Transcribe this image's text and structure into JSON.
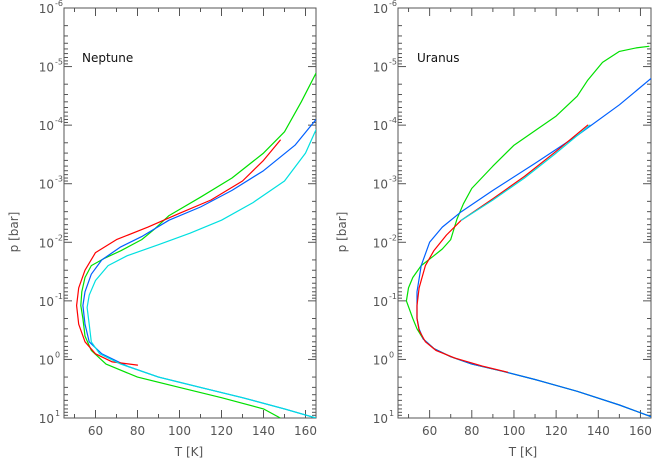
{
  "chart_data": [
    {
      "type": "line",
      "title": "Neptune",
      "xlabel": "T [K]",
      "ylabel": "p [bar]",
      "xlim": [
        45,
        165
      ],
      "ylim": [
        10,
        1e-06
      ],
      "y_scale": "log",
      "x_ticks": [
        60,
        80,
        100,
        120,
        140,
        160
      ],
      "y_tick_labels": [
        {
          "base": "10",
          "exp": "-6"
        },
        {
          "base": "10",
          "exp": "-5"
        },
        {
          "base": "10",
          "exp": "-4"
        },
        {
          "base": "10",
          "exp": "-3"
        },
        {
          "base": "10",
          "exp": "-2"
        },
        {
          "base": "10",
          "exp": "-1"
        },
        {
          "base": "10",
          "exp": "0"
        },
        {
          "base": "10",
          "exp": "1"
        }
      ],
      "series": [
        {
          "color": "#00e000",
          "points": [
            [
              148,
              10
            ],
            [
              140,
              7
            ],
            [
              120,
              4.5
            ],
            [
              100,
              3
            ],
            [
              80,
              2
            ],
            [
              65,
              1.2
            ],
            [
              58,
              0.7
            ],
            [
              55,
              0.4
            ],
            [
              54,
              0.2
            ],
            [
              53,
              0.12
            ],
            [
              53.5,
              0.07
            ],
            [
              55,
              0.04
            ],
            [
              58,
              0.025
            ],
            [
              64,
              0.019
            ],
            [
              72,
              0.014
            ],
            [
              82,
              0.009
            ],
            [
              88,
              0.006
            ],
            [
              95,
              0.0035
            ],
            [
              110,
              0.0017
            ],
            [
              125,
              0.0008
            ],
            [
              140,
              0.0003
            ],
            [
              150,
              0.00013
            ],
            [
              158,
              4e-05
            ],
            [
              165,
              1.3e-05
            ]
          ]
        },
        {
          "color": "#0060ff",
          "points": [
            [
              165,
              10
            ],
            [
              150,
              7
            ],
            [
              130,
              4.5
            ],
            [
              110,
              3
            ],
            [
              90,
              2
            ],
            [
              75,
              1.3
            ],
            [
              63,
              0.8
            ],
            [
              57,
              0.5
            ],
            [
              55,
              0.25
            ],
            [
              54,
              0.12
            ],
            [
              55,
              0.07
            ],
            [
              58,
              0.035
            ],
            [
              63,
              0.02
            ],
            [
              72,
              0.012
            ],
            [
              82,
              0.008
            ],
            [
              95,
              0.0042
            ],
            [
              110,
              0.0025
            ],
            [
              125,
              0.0013
            ],
            [
              140,
              0.0006
            ],
            [
              155,
              0.00022
            ],
            [
              165,
              8e-05
            ]
          ]
        },
        {
          "color": "#ff0000",
          "points": [
            [
              80,
              1.25
            ],
            [
              68,
              1.1
            ],
            [
              60,
              0.8
            ],
            [
              55,
              0.5
            ],
            [
              52,
              0.25
            ],
            [
              51,
              0.12
            ],
            [
              52,
              0.06
            ],
            [
              55,
              0.03
            ],
            [
              60,
              0.015
            ],
            [
              70,
              0.009
            ],
            [
              85,
              0.0055
            ],
            [
              100,
              0.0032
            ],
            [
              115,
              0.0019
            ],
            [
              130,
              0.0009
            ],
            [
              140,
              0.0004
            ],
            [
              148,
              0.00018
            ]
          ]
        },
        {
          "color": "#00e0e0",
          "points": [
            [
              165,
              10
            ],
            [
              150,
              7
            ],
            [
              130,
              4.5
            ],
            [
              110,
              3
            ],
            [
              90,
              2
            ],
            [
              72,
              1.2
            ],
            [
              62,
              0.8
            ],
            [
              58,
              0.5
            ],
            [
              57,
              0.25
            ],
            [
              56,
              0.13
            ],
            [
              57,
              0.08
            ],
            [
              60,
              0.045
            ],
            [
              66,
              0.025
            ],
            [
              75,
              0.017
            ],
            [
              90,
              0.011
            ],
            [
              105,
              0.007
            ],
            [
              120,
              0.0042
            ],
            [
              135,
              0.0021
            ],
            [
              150,
              0.0009
            ],
            [
              160,
              0.0003
            ],
            [
              165,
              0.00012
            ]
          ]
        }
      ]
    },
    {
      "type": "line",
      "title": "Uranus",
      "xlabel": "T [K]",
      "ylabel": "p [bar]",
      "xlim": [
        45,
        165
      ],
      "ylim": [
        10,
        1e-06
      ],
      "y_scale": "log",
      "x_ticks": [
        60,
        80,
        100,
        120,
        140,
        160
      ],
      "y_tick_labels": [
        {
          "base": "10",
          "exp": "-6"
        },
        {
          "base": "10",
          "exp": "-5"
        },
        {
          "base": "10",
          "exp": "-4"
        },
        {
          "base": "10",
          "exp": "-3"
        },
        {
          "base": "10",
          "exp": "-2"
        },
        {
          "base": "10",
          "exp": "-1"
        },
        {
          "base": "10",
          "exp": "0"
        },
        {
          "base": "10",
          "exp": "1"
        }
      ],
      "series": [
        {
          "color": "#00e000",
          "points": [
            [
              165,
              9.5
            ],
            [
              150,
              6
            ],
            [
              130,
              3.5
            ],
            [
              110,
              2.2
            ],
            [
              95,
              1.6
            ],
            [
              80,
              1.2
            ],
            [
              70,
              0.9
            ],
            [
              62,
              0.65
            ],
            [
              57,
              0.45
            ],
            [
              54,
              0.3
            ],
            [
              52,
              0.2
            ],
            [
              49,
              0.1
            ],
            [
              50,
              0.06
            ],
            [
              52,
              0.04
            ],
            [
              56,
              0.025
            ],
            [
              62,
              0.017
            ],
            [
              66,
              0.013
            ],
            [
              70,
              0.009
            ],
            [
              73,
              0.004
            ],
            [
              76,
              0.0022
            ],
            [
              80,
              0.0012
            ],
            [
              90,
              0.0005
            ],
            [
              100,
              0.00022
            ],
            [
              120,
              7e-05
            ],
            [
              130,
              3.2e-05
            ],
            [
              135,
              1.7e-05
            ],
            [
              142,
              8.5e-06
            ],
            [
              150,
              5.5e-06
            ],
            [
              158,
              4.8e-06
            ],
            [
              164,
              4.5e-06
            ]
          ]
        },
        {
          "color": "#0060ff",
          "points": [
            [
              165,
              9.5
            ],
            [
              150,
              6
            ],
            [
              130,
              3.5
            ],
            [
              110,
              2.2
            ],
            [
              95,
              1.6
            ],
            [
              80,
              1.2
            ],
            [
              70,
              0.9
            ],
            [
              62,
              0.65
            ],
            [
              57,
              0.45
            ],
            [
              55,
              0.3
            ],
            [
              54,
              0.2
            ],
            [
              54,
              0.12
            ],
            [
              54,
              0.07
            ],
            [
              56,
              0.025
            ],
            [
              60,
              0.01
            ],
            [
              66,
              0.0055
            ],
            [
              75,
              0.003
            ],
            [
              90,
              0.0013
            ],
            [
              110,
              0.00045
            ],
            [
              130,
              0.00015
            ],
            [
              150,
              4.5e-05
            ],
            [
              165,
              1.6e-05
            ]
          ]
        },
        {
          "color": "#ff0000",
          "points": [
            [
              97,
              1.65
            ],
            [
              85,
              1.3
            ],
            [
              72,
              0.95
            ],
            [
              63,
              0.7
            ],
            [
              58,
              0.5
            ],
            [
              55,
              0.32
            ],
            [
              54,
              0.2
            ],
            [
              54,
              0.12
            ],
            [
              55,
              0.06
            ],
            [
              58,
              0.025
            ],
            [
              62,
              0.014
            ],
            [
              68,
              0.0075
            ],
            [
              75,
              0.0042
            ],
            [
              90,
              0.0018
            ],
            [
              105,
              0.00075
            ],
            [
              120,
              0.00028
            ],
            [
              135,
              0.0001
            ]
          ]
        },
        {
          "color": "#00e0e0",
          "points": [
            [
              75,
              0.0042
            ],
            [
              90,
              0.0019
            ],
            [
              105,
              0.0008
            ],
            [
              120,
              0.0003
            ],
            [
              136,
              0.0001
            ]
          ]
        }
      ]
    }
  ]
}
